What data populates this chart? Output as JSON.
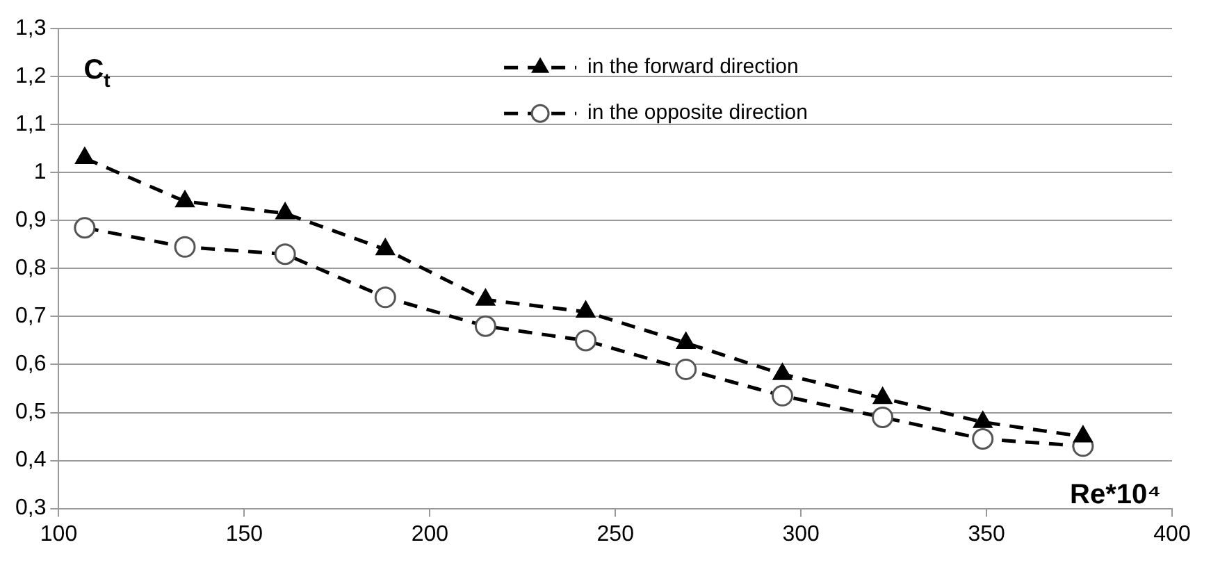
{
  "chart_data": {
    "type": "line",
    "xlabel": "Re*10⁴",
    "ylabel": "C$_{t}$",
    "xlim": [
      100,
      400
    ],
    "xticks": [
      100,
      150,
      200,
      250,
      300,
      350,
      400
    ],
    "ylim": [
      0.3,
      1.3
    ],
    "yticks": [
      {
        "value": 0.3,
        "label": "0,3"
      },
      {
        "value": 0.4,
        "label": "0,4"
      },
      {
        "value": 0.5,
        "label": "0,5"
      },
      {
        "value": 0.6,
        "label": "0,6"
      },
      {
        "value": 0.7,
        "label": "0,7"
      },
      {
        "value": 0.8,
        "label": "0,8"
      },
      {
        "value": 0.9,
        "label": "0,9"
      },
      {
        "value": 1,
        "label": "1"
      },
      {
        "value": 1.1,
        "label": "1,1"
      },
      {
        "value": 1.2,
        "label": "1,2"
      },
      {
        "value": 1.3,
        "label": "1,3"
      }
    ],
    "grid": "y",
    "legend": "top right",
    "series": [
      {
        "name": "in the forward direction",
        "color": "#000000",
        "marker": "triangle",
        "line_style": "dashed",
        "x": [
          107,
          134,
          161,
          188,
          215,
          242,
          269,
          295,
          322,
          349,
          376
        ],
        "values": [
          1.03,
          0.94,
          0.915,
          0.84,
          0.735,
          0.71,
          0.645,
          0.58,
          0.53,
          0.48,
          0.45
        ]
      },
      {
        "name": "in the opposite direction",
        "color": "#000000",
        "marker": "circle",
        "line_style": "dashed",
        "x": [
          107,
          134,
          161,
          188,
          215,
          242,
          269,
          295,
          322,
          349,
          376
        ],
        "values": [
          0.885,
          0.845,
          0.83,
          0.74,
          0.68,
          0.65,
          0.59,
          0.535,
          0.49,
          0.445,
          0.43
        ]
      }
    ]
  }
}
